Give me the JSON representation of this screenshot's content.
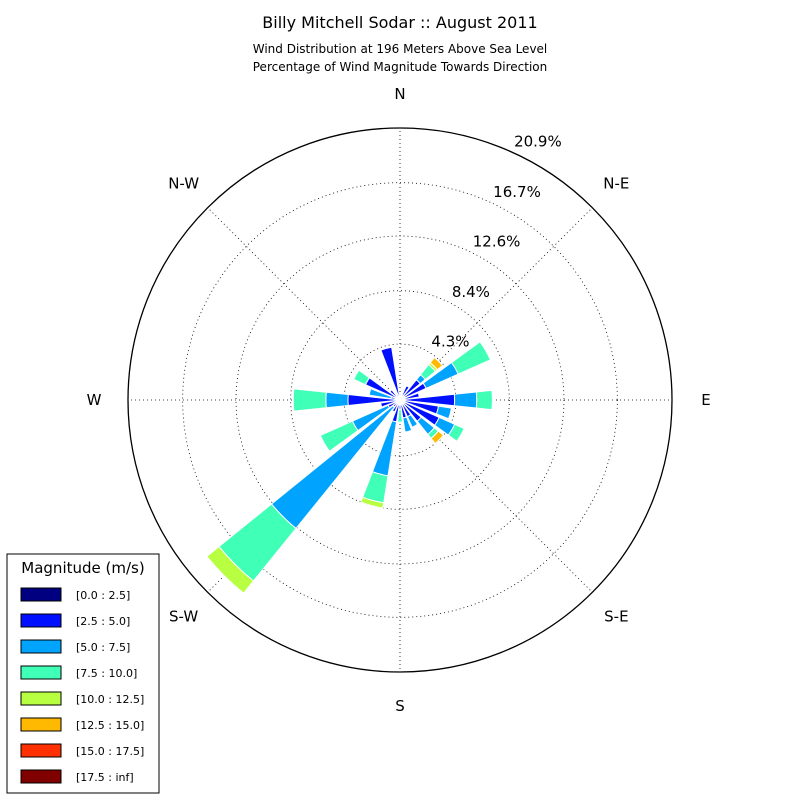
{
  "title": "Billy Mitchell Sodar :: August 2011",
  "subtitle_lines": [
    "Wind Distribution at 196 Meters Above Sea Level",
    "Percentage of Wind Magnitude Towards Direction"
  ],
  "chart_data": {
    "type": "windrose",
    "title": "Billy Mitchell Sodar :: August 2011",
    "subtitle": "Wind Distribution at 196 Meters Above Sea Level / Percentage of Wind Magnitude Towards Direction",
    "radial_unit": "%",
    "radial_max": 20.9,
    "radial_ticks": [
      4.3,
      8.4,
      12.6,
      16.7,
      20.9
    ],
    "radial_tick_labels": [
      "4.3%",
      "8.4%",
      "12.6%",
      "16.7%",
      "20.9%"
    ],
    "direction_labels": [
      {
        "label": "N",
        "angle": 0
      },
      {
        "label": "N-E",
        "angle": 45
      },
      {
        "label": "E",
        "angle": 90
      },
      {
        "label": "S-E",
        "angle": 135
      },
      {
        "label": "S",
        "angle": 180
      },
      {
        "label": "S-W",
        "angle": 225
      },
      {
        "label": "W",
        "angle": 270
      },
      {
        "label": "N-W",
        "angle": 315
      }
    ],
    "grid": true,
    "sector_width_deg": 15,
    "legend": {
      "title": "Magnitude (m/s)",
      "position": "bottom-left",
      "bins": [
        {
          "label": "[0.0 : 2.5]",
          "color": "#000080"
        },
        {
          "label": "[2.5 : 5.0]",
          "color": "#0010ff"
        },
        {
          "label": "[5.0 : 7.5]",
          "color": "#00a4ff"
        },
        {
          "label": "[7.5 : 10.0]",
          "color": "#40ffb7"
        },
        {
          "label": "[10.0 : 12.5]",
          "color": "#b7ff40"
        },
        {
          "label": "[12.5 : 15.0]",
          "color": "#ffb900"
        },
        {
          "label": "[15.0 : 17.5]",
          "color": "#ff3000"
        },
        {
          "label": "[17.5 : inf]",
          "color": "#800000"
        }
      ]
    },
    "sectors": [
      {
        "dir": 0,
        "values": [
          0.0,
          0.5,
          0.0,
          0.0,
          0.0,
          0.0,
          0.0,
          0.0
        ]
      },
      {
        "dir": 15,
        "values": [
          0.0,
          0.3,
          0.0,
          0.0,
          0.0,
          0.0,
          0.0,
          0.0
        ]
      },
      {
        "dir": 30,
        "values": [
          0.0,
          1.2,
          0.0,
          0.0,
          0.0,
          0.0,
          0.0,
          0.0
        ]
      },
      {
        "dir": 45,
        "values": [
          0.0,
          2.0,
          0.5,
          1.0,
          0.2,
          0.5,
          0.0,
          0.0
        ]
      },
      {
        "dir": 60,
        "values": [
          0.0,
          2.2,
          2.7,
          2.7,
          0.0,
          0.0,
          0.0,
          0.0
        ]
      },
      {
        "dir": 75,
        "values": [
          0.0,
          1.5,
          0.0,
          0.0,
          0.0,
          0.0,
          0.0,
          0.0
        ]
      },
      {
        "dir": 90,
        "values": [
          0.0,
          4.2,
          1.7,
          1.2,
          0.0,
          0.0,
          0.0,
          0.0
        ]
      },
      {
        "dir": 105,
        "values": [
          0.0,
          3.0,
          1.0,
          0.0,
          0.0,
          0.0,
          0.0,
          0.0
        ]
      },
      {
        "dir": 120,
        "values": [
          0.0,
          3.3,
          1.3,
          0.8,
          0.0,
          0.0,
          0.0,
          0.0
        ]
      },
      {
        "dir": 135,
        "values": [
          0.0,
          2.1,
          1.3,
          0.4,
          0.0,
          0.5,
          0.0,
          0.0
        ]
      },
      {
        "dir": 150,
        "values": [
          0.0,
          1.4,
          0.9,
          0.0,
          0.0,
          0.0,
          0.0,
          0.0
        ]
      },
      {
        "dir": 165,
        "values": [
          0.0,
          1.4,
          1.1,
          0.0,
          0.0,
          0.0,
          0.0,
          0.0
        ]
      },
      {
        "dir": 180,
        "values": [
          0.0,
          0.7,
          0.0,
          1.0,
          0.0,
          0.0,
          0.0,
          0.0
        ]
      },
      {
        "dir": 195,
        "values": [
          0.0,
          1.7,
          4.2,
          2.1,
          0.4,
          0.0,
          0.0,
          0.0
        ]
      },
      {
        "dir": 210,
        "values": [
          0.0,
          1.0,
          0.0,
          0.0,
          0.0,
          0.0,
          0.0,
          0.0
        ]
      },
      {
        "dir": 225,
        "values": [
          0.0,
          0.7,
          12.0,
          5.2,
          1.2,
          0.0,
          0.0,
          0.0
        ]
      },
      {
        "dir": 240,
        "values": [
          0.0,
          1.0,
          3.0,
          2.7,
          0.0,
          0.0,
          0.0,
          0.0
        ]
      },
      {
        "dir": 255,
        "values": [
          0.0,
          1.5,
          0.0,
          0.0,
          0.0,
          0.0,
          0.0,
          0.0
        ]
      },
      {
        "dir": 270,
        "values": [
          0.0,
          4.0,
          1.7,
          2.5,
          0.0,
          0.0,
          0.0,
          0.0
        ]
      },
      {
        "dir": 285,
        "values": [
          0.0,
          0.7,
          1.7,
          0.0,
          0.0,
          0.0,
          0.0,
          0.0
        ]
      },
      {
        "dir": 300,
        "values": [
          0.0,
          2.9,
          0.0,
          1.0,
          0.0,
          0.0,
          0.0,
          0.0
        ]
      },
      {
        "dir": 315,
        "values": [
          0.0,
          1.0,
          0.0,
          0.0,
          0.0,
          0.0,
          0.0,
          0.0
        ]
      },
      {
        "dir": 330,
        "values": [
          0.0,
          0.5,
          0.0,
          0.0,
          0.0,
          0.0,
          0.0,
          0.0
        ]
      },
      {
        "dir": 345,
        "values": [
          0.0,
          4.1,
          0.0,
          0.0,
          0.0,
          0.0,
          0.0,
          0.0
        ]
      }
    ]
  }
}
